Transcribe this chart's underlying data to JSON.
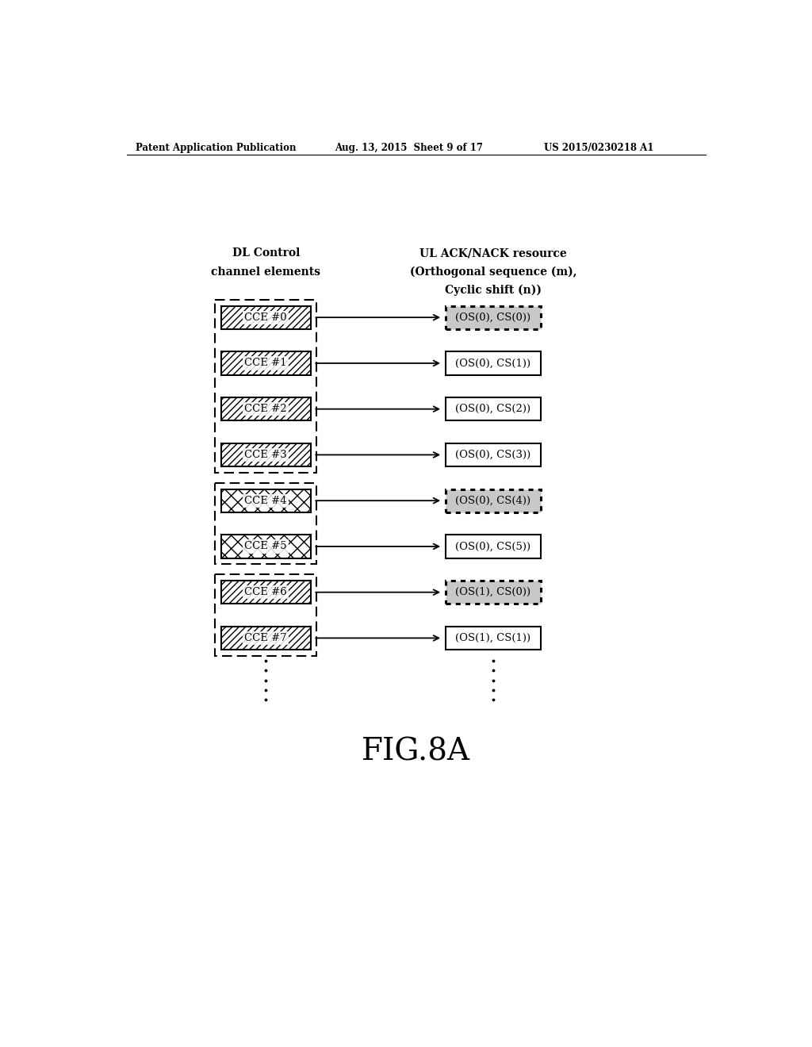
{
  "header_left": "Patent Application Publication",
  "header_mid": "Aug. 13, 2015  Sheet 9 of 17",
  "header_right": "US 2015/0230218 A1",
  "fig_label": "FIG.8A",
  "left_col_title_line1": "DL Control",
  "left_col_title_line2": "channel elements",
  "right_col_title_line1": "UL ACK/NACK resource",
  "right_col_title_line2": "(Orthogonal sequence (m),",
  "right_col_title_line3": "Cyclic shift (n))",
  "cce_labels": [
    "CCE #0",
    "CCE #1",
    "CCE #2",
    "CCE #3",
    "CCE #4",
    "CCE #5",
    "CCE #6",
    "CCE #7"
  ],
  "resource_labels": [
    "(OS(0), CS(0))",
    "(OS(0), CS(1))",
    "(OS(0), CS(2))",
    "(OS(0), CS(3))",
    "(OS(0), CS(4))",
    "(OS(0), CS(5))",
    "(OS(1), CS(0))",
    "(OS(1), CS(1))"
  ],
  "cce_hatch": [
    "////",
    "////",
    "////",
    "////",
    "xxxx",
    "xxxx",
    "////",
    "////"
  ],
  "highlighted_resources": [
    0,
    4,
    6
  ],
  "background_color": "#ffffff"
}
